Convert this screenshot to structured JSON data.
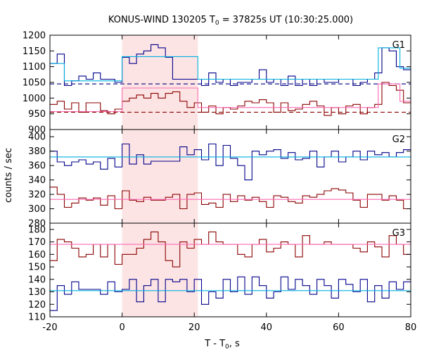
{
  "chart_data": {
    "type": "line",
    "title": "KONUS-WIND 130205 T",
    "title_sub": "0",
    "title_rest": " = 37825s UT (10:30:25.000)",
    "xlabel_main": "T - T",
    "xlabel_sub": "0",
    "xlabel_tail": ", s",
    "ylabel": "counts / sec",
    "xlim": [
      -20,
      80
    ],
    "x_ticks": [
      "-20",
      "0",
      "20",
      "40",
      "60",
      "80"
    ],
    "shaded_interval": [
      0,
      21
    ],
    "shade_color": "#fde4e4",
    "bin_edges": [
      -20,
      -18,
      -16,
      -14,
      -12,
      -10,
      -8,
      -6,
      -4,
      -2,
      0,
      2,
      4,
      6,
      8,
      10,
      12,
      14,
      16,
      18,
      20,
      22,
      24,
      26,
      28,
      30,
      32,
      34,
      36,
      38,
      40,
      42,
      44,
      46,
      48,
      50,
      52,
      54,
      56,
      58,
      60,
      62,
      64,
      66,
      68,
      70,
      72,
      74,
      76,
      78,
      80
    ],
    "panels": [
      {
        "label": "G1",
        "ylim": [
          900,
          1200
        ],
        "y_ticks": [
          900,
          950,
          1000,
          1050,
          1100,
          1150,
          1200
        ],
        "series": [
          {
            "color": "#00008b",
            "values": [
              1110,
              1140,
              1040,
              1055,
              1070,
              1060,
              1080,
              1060,
              1060,
              1050,
              1130,
              1110,
              1140,
              1150,
              1170,
              1160,
              1130,
              1060,
              1060,
              1060,
              1060,
              1040,
              1080,
              1050,
              1060,
              1040,
              1050,
              1050,
              1060,
              1090,
              1050,
              1060,
              1040,
              1070,
              1040,
              1060,
              1040,
              1060,
              1050,
              1050,
              1060,
              1060,
              1040,
              1050,
              1060,
              1080,
              1160,
              1150,
              1100,
              1090
            ]
          },
          {
            "color": "#00b0e0",
            "steps": [
              [
                -20,
                1110
              ],
              [
                -16,
                1055
              ],
              [
                0,
                1132
              ],
              [
                21,
                1060
              ],
              [
                71,
                1160
              ],
              [
                77,
                1095
              ]
            ]
          },
          {
            "color": "#000080",
            "dashed": true,
            "values": [
              1045
            ]
          },
          {
            "color": "#8b0000",
            "values": [
              980,
              990,
              965,
              985,
              955,
              985,
              985,
              960,
              950,
              965,
              990,
              1000,
              1010,
              1000,
              1015,
              1000,
              1015,
              1020,
              990,
              970,
              985,
              955,
              975,
              950,
              970,
              965,
              975,
              990,
              985,
              995,
              985,
              955,
              985,
              960,
              965,
              980,
              990,
              975,
              945,
              970,
              950,
              975,
              980,
              950,
              970,
              980,
              1050,
              1040,
              1025,
              985
            ]
          },
          {
            "color": "#ff69b4",
            "steps": [
              [
                -20,
                957
              ],
              [
                0,
                1032
              ],
              [
                21,
                970
              ],
              [
                71,
                1045
              ],
              [
                77,
                990
              ]
            ]
          },
          {
            "color": "#8b0000",
            "dashed": true,
            "values": [
              955
            ]
          }
        ]
      },
      {
        "label": "G2",
        "ylim": [
          280,
          410
        ],
        "y_ticks": [
          280,
          300,
          320,
          340,
          360,
          380,
          400
        ],
        "series": [
          {
            "color": "#00008b",
            "values": [
              380,
              365,
              360,
              365,
              368,
              362,
              365,
              355,
              370,
              358,
              390,
              362,
              375,
              362,
              366,
              366,
              366,
              366,
              386,
              375,
              382,
              368,
              390,
              360,
              388,
              370,
              360,
              340,
              380,
              375,
              380,
              382,
              370,
              378,
              368,
              370,
              380,
              358,
              372,
              380,
              365,
              372,
              380,
              368,
              380,
              375,
              378,
              372,
              378,
              382
            ]
          },
          {
            "color": "#00b0e0",
            "steps": [
              [
                -20,
                372
              ]
            ]
          },
          {
            "color": "#8b0000",
            "values": [
              330,
              320,
              302,
              308,
              315,
              312,
              315,
              305,
              318,
              300,
              325,
              312,
              310,
              316,
              312,
              312,
              316,
              320,
              300,
              320,
              322,
              306,
              308,
              302,
              320,
              310,
              318,
              312,
              316,
              310,
              302,
              318,
              316,
              310,
              308,
              318,
              316,
              320,
              325,
              328,
              326,
              322,
              312,
              302,
              320,
              320,
              312,
              318,
              312,
              300
            ]
          },
          {
            "color": "#ff69b4",
            "steps": [
              [
                -20,
                313
              ]
            ]
          }
        ]
      },
      {
        "label": "G3",
        "ylim": [
          110,
          185
        ],
        "y_ticks": [
          110,
          120,
          130,
          140,
          150,
          160,
          170,
          180
        ],
        "series": [
          {
            "color": "#8b0000",
            "values": [
              155,
              172,
              170,
              165,
              158,
              160,
              168,
              158,
              168,
              152,
              160,
              160,
              165,
              172,
              178,
              170,
              155,
              150,
              170,
              165,
              172,
              168,
              178,
              170,
              168,
              168,
              160,
              158,
              168,
              172,
              162,
              165,
              170,
              168,
              158,
              175,
              168,
              168,
              170,
              168,
              168,
              168,
              165,
              162,
              170,
              166,
              158,
              175,
              168,
              160
            ]
          },
          {
            "color": "#ff69b4",
            "steps": [
              [
                -20,
                168
              ]
            ]
          },
          {
            "color": "#00008b",
            "values": [
              115,
              135,
              128,
              138,
              132,
              132,
              132,
              128,
              138,
              130,
              132,
              140,
              122,
              135,
              140,
              122,
              140,
              138,
              140,
              130,
              140,
              120,
              130,
              125,
              140,
              130,
              142,
              128,
              142,
              135,
              125,
              130,
              142,
              132,
              140,
              135,
              128,
              140,
              135,
              125,
              140,
              136,
              130,
              140,
              122,
              135,
              125,
              138,
              132,
              138
            ]
          },
          {
            "color": "#00b0e0",
            "steps": [
              [
                -20,
                131
              ]
            ]
          }
        ]
      }
    ]
  }
}
